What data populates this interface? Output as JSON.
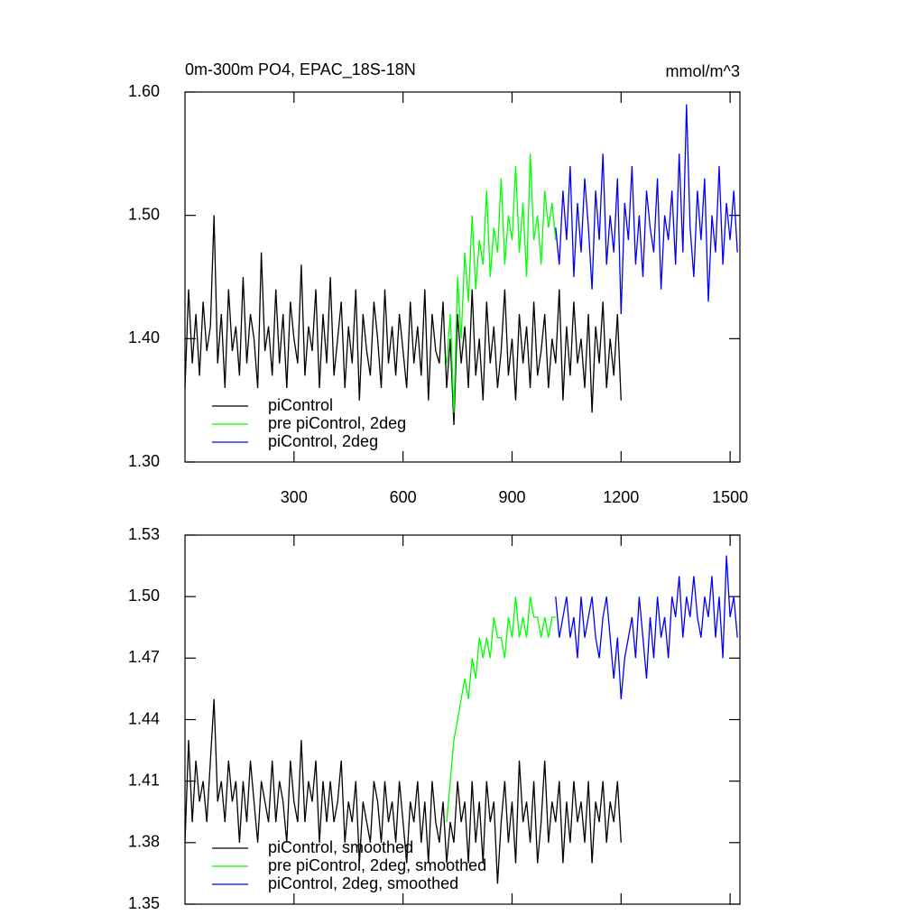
{
  "chart_data": [
    {
      "type": "line",
      "title": "0m-300m PO4, EPAC_18S-18N",
      "units": "mmol/m^3",
      "xlim": [
        0,
        1527
      ],
      "xticks": [
        300,
        600,
        900,
        1200,
        1500
      ],
      "xtick_labels": true,
      "ylim": [
        1.3,
        1.6
      ],
      "yticks": [
        {
          "value": 1.3,
          "label": "1.30"
        },
        {
          "value": 1.4,
          "label": "1.40"
        },
        {
          "value": 1.5,
          "label": "1.50"
        },
        {
          "value": 1.6,
          "label": "1.60"
        }
      ],
      "legend": "lower left",
      "series": [
        {
          "name": "piControl",
          "color": "#000000",
          "x": [
            0,
            10,
            20,
            30,
            40,
            50,
            60,
            70,
            80,
            90,
            100,
            110,
            120,
            130,
            140,
            150,
            160,
            170,
            180,
            190,
            200,
            210,
            220,
            230,
            240,
            250,
            260,
            270,
            280,
            290,
            300,
            310,
            320,
            330,
            340,
            350,
            360,
            370,
            380,
            390,
            400,
            410,
            420,
            430,
            440,
            450,
            460,
            470,
            480,
            490,
            500,
            510,
            520,
            530,
            540,
            550,
            560,
            570,
            580,
            590,
            600,
            610,
            620,
            630,
            640,
            650,
            660,
            670,
            680,
            690,
            700,
            710,
            720,
            730,
            740,
            750,
            760,
            770,
            780,
            790,
            800,
            810,
            820,
            830,
            840,
            850,
            860,
            870,
            880,
            890,
            900,
            910,
            920,
            930,
            940,
            950,
            960,
            970,
            980,
            990,
            1000,
            1010,
            1020,
            1030,
            1040,
            1050,
            1060,
            1070,
            1080,
            1090,
            1100,
            1110,
            1120,
            1130,
            1140,
            1150,
            1160,
            1170,
            1180,
            1190,
            1200
          ],
          "values": [
            1.36,
            1.44,
            1.38,
            1.42,
            1.37,
            1.43,
            1.39,
            1.41,
            1.5,
            1.38,
            1.42,
            1.36,
            1.44,
            1.39,
            1.41,
            1.37,
            1.45,
            1.38,
            1.42,
            1.4,
            1.36,
            1.47,
            1.39,
            1.41,
            1.37,
            1.44,
            1.38,
            1.42,
            1.36,
            1.43,
            1.4,
            1.38,
            1.46,
            1.37,
            1.41,
            1.39,
            1.44,
            1.36,
            1.42,
            1.38,
            1.45,
            1.37,
            1.4,
            1.43,
            1.36,
            1.41,
            1.38,
            1.44,
            1.35,
            1.42,
            1.39,
            1.37,
            1.43,
            1.4,
            1.36,
            1.44,
            1.38,
            1.41,
            1.37,
            1.42,
            1.39,
            1.36,
            1.43,
            1.38,
            1.41,
            1.37,
            1.44,
            1.35,
            1.42,
            1.39,
            1.38,
            1.43,
            1.36,
            1.4,
            1.33,
            1.42,
            1.38,
            1.41,
            1.36,
            1.44,
            1.37,
            1.4,
            1.35,
            1.43,
            1.38,
            1.41,
            1.36,
            1.39,
            1.44,
            1.37,
            1.4,
            1.35,
            1.42,
            1.38,
            1.41,
            1.36,
            1.43,
            1.37,
            1.39,
            1.42,
            1.36,
            1.4,
            1.38,
            1.44,
            1.35,
            1.41,
            1.37,
            1.43,
            1.38,
            1.4,
            1.36,
            1.42,
            1.34,
            1.41,
            1.38,
            1.43,
            1.36,
            1.4,
            1.37,
            1.42,
            1.35
          ]
        },
        {
          "name": "pre piControl, 2deg",
          "color": "#00ff00",
          "x": [
            720,
            730,
            740,
            750,
            760,
            770,
            780,
            790,
            800,
            810,
            820,
            830,
            840,
            850,
            860,
            870,
            880,
            890,
            900,
            910,
            920,
            930,
            940,
            950,
            960,
            970,
            980,
            990,
            1000,
            1010,
            1020
          ],
          "values": [
            1.38,
            1.42,
            1.34,
            1.45,
            1.4,
            1.47,
            1.43,
            1.5,
            1.44,
            1.48,
            1.46,
            1.52,
            1.45,
            1.49,
            1.47,
            1.53,
            1.46,
            1.5,
            1.48,
            1.54,
            1.47,
            1.51,
            1.45,
            1.55,
            1.48,
            1.5,
            1.46,
            1.52,
            1.49,
            1.51,
            1.48
          ]
        },
        {
          "name": "piControl, 2deg",
          "color": "#0000ff",
          "x": [
            1020,
            1030,
            1040,
            1050,
            1060,
            1070,
            1080,
            1090,
            1100,
            1110,
            1120,
            1130,
            1140,
            1150,
            1160,
            1170,
            1180,
            1190,
            1200,
            1210,
            1220,
            1230,
            1240,
            1250,
            1260,
            1270,
            1280,
            1290,
            1300,
            1310,
            1320,
            1330,
            1340,
            1350,
            1360,
            1370,
            1380,
            1390,
            1400,
            1410,
            1420,
            1430,
            1440,
            1450,
            1460,
            1470,
            1480,
            1490,
            1500,
            1510,
            1520
          ],
          "values": [
            1.49,
            1.46,
            1.52,
            1.48,
            1.54,
            1.45,
            1.51,
            1.47,
            1.53,
            1.49,
            1.44,
            1.52,
            1.48,
            1.55,
            1.46,
            1.5,
            1.47,
            1.53,
            1.42,
            1.51,
            1.48,
            1.54,
            1.46,
            1.5,
            1.45,
            1.52,
            1.49,
            1.47,
            1.53,
            1.44,
            1.5,
            1.48,
            1.52,
            1.46,
            1.55,
            1.47,
            1.59,
            1.49,
            1.45,
            1.52,
            1.48,
            1.53,
            1.43,
            1.5,
            1.47,
            1.54,
            1.46,
            1.51,
            1.48,
            1.52,
            1.47
          ]
        }
      ]
    },
    {
      "type": "line",
      "xlim": [
        0,
        1527
      ],
      "xticks": [
        300,
        600,
        900,
        1200,
        1500
      ],
      "xtick_labels": false,
      "ylim": [
        1.35,
        1.53
      ],
      "yticks": [
        1.35,
        1.38,
        1.41,
        1.44,
        1.47,
        {
          "value": 1.5,
          "label": "1.50"
        },
        1.53
      ],
      "legend": "lower left",
      "series": [
        {
          "name": "piControl, smoothed",
          "color": "#000000",
          "x": [
            0,
            10,
            20,
            30,
            40,
            50,
            60,
            70,
            80,
            90,
            100,
            110,
            120,
            130,
            140,
            150,
            160,
            170,
            180,
            190,
            200,
            210,
            220,
            230,
            240,
            250,
            260,
            270,
            280,
            290,
            300,
            310,
            320,
            330,
            340,
            350,
            360,
            370,
            380,
            390,
            400,
            410,
            420,
            430,
            440,
            450,
            460,
            470,
            480,
            490,
            500,
            510,
            520,
            530,
            540,
            550,
            560,
            570,
            580,
            590,
            600,
            610,
            620,
            630,
            640,
            650,
            660,
            670,
            680,
            690,
            700,
            710,
            720,
            730,
            740,
            750,
            760,
            770,
            780,
            790,
            800,
            810,
            820,
            830,
            840,
            850,
            860,
            870,
            880,
            890,
            900,
            910,
            920,
            930,
            940,
            950,
            960,
            970,
            980,
            990,
            1000,
            1010,
            1020,
            1030,
            1040,
            1050,
            1060,
            1070,
            1080,
            1090,
            1100,
            1110,
            1120,
            1130,
            1140,
            1150,
            1160,
            1170,
            1180,
            1190,
            1200
          ],
          "values": [
            1.38,
            1.43,
            1.39,
            1.42,
            1.4,
            1.41,
            1.39,
            1.42,
            1.45,
            1.4,
            1.41,
            1.39,
            1.42,
            1.4,
            1.41,
            1.38,
            1.41,
            1.39,
            1.42,
            1.4,
            1.38,
            1.41,
            1.4,
            1.39,
            1.42,
            1.39,
            1.41,
            1.4,
            1.38,
            1.42,
            1.4,
            1.39,
            1.43,
            1.39,
            1.41,
            1.4,
            1.42,
            1.38,
            1.41,
            1.39,
            1.41,
            1.39,
            1.4,
            1.42,
            1.38,
            1.4,
            1.39,
            1.41,
            1.37,
            1.4,
            1.39,
            1.38,
            1.41,
            1.4,
            1.38,
            1.41,
            1.39,
            1.4,
            1.38,
            1.41,
            1.39,
            1.37,
            1.4,
            1.39,
            1.41,
            1.38,
            1.4,
            1.37,
            1.41,
            1.39,
            1.38,
            1.4,
            1.37,
            1.39,
            1.38,
            1.41,
            1.39,
            1.4,
            1.37,
            1.41,
            1.38,
            1.4,
            1.37,
            1.41,
            1.39,
            1.4,
            1.36,
            1.39,
            1.41,
            1.38,
            1.4,
            1.37,
            1.42,
            1.39,
            1.4,
            1.38,
            1.41,
            1.37,
            1.39,
            1.42,
            1.38,
            1.4,
            1.39,
            1.41,
            1.37,
            1.4,
            1.38,
            1.41,
            1.39,
            1.4,
            1.38,
            1.41,
            1.37,
            1.4,
            1.39,
            1.41,
            1.38,
            1.4,
            1.39,
            1.41,
            1.38
          ]
        },
        {
          "name": "pre piControl, 2deg, smoothed",
          "color": "#00ff00",
          "x": [
            720,
            730,
            740,
            750,
            760,
            770,
            780,
            790,
            800,
            810,
            820,
            830,
            840,
            850,
            860,
            870,
            880,
            890,
            900,
            910,
            920,
            930,
            940,
            950,
            960,
            970,
            980,
            990,
            1000,
            1010,
            1020
          ],
          "values": [
            1.39,
            1.41,
            1.43,
            1.44,
            1.45,
            1.46,
            1.45,
            1.47,
            1.46,
            1.48,
            1.47,
            1.48,
            1.47,
            1.49,
            1.48,
            1.48,
            1.47,
            1.49,
            1.48,
            1.5,
            1.48,
            1.49,
            1.48,
            1.5,
            1.49,
            1.49,
            1.48,
            1.49,
            1.48,
            1.49,
            1.49
          ]
        },
        {
          "name": "piControl, 2deg, smoothed",
          "color": "#0000ff",
          "x": [
            1020,
            1030,
            1040,
            1050,
            1060,
            1070,
            1080,
            1090,
            1100,
            1110,
            1120,
            1130,
            1140,
            1150,
            1160,
            1170,
            1180,
            1190,
            1200,
            1210,
            1220,
            1230,
            1240,
            1250,
            1260,
            1270,
            1280,
            1290,
            1300,
            1310,
            1320,
            1330,
            1340,
            1350,
            1360,
            1370,
            1380,
            1390,
            1400,
            1410,
            1420,
            1430,
            1440,
            1450,
            1460,
            1470,
            1480,
            1490,
            1500,
            1510,
            1520
          ],
          "values": [
            1.5,
            1.48,
            1.49,
            1.5,
            1.48,
            1.49,
            1.47,
            1.5,
            1.48,
            1.49,
            1.5,
            1.48,
            1.47,
            1.49,
            1.5,
            1.48,
            1.46,
            1.48,
            1.45,
            1.47,
            1.48,
            1.49,
            1.47,
            1.5,
            1.48,
            1.46,
            1.49,
            1.47,
            1.5,
            1.48,
            1.49,
            1.47,
            1.5,
            1.49,
            1.51,
            1.48,
            1.5,
            1.49,
            1.51,
            1.49,
            1.48,
            1.5,
            1.49,
            1.51,
            1.48,
            1.5,
            1.47,
            1.52,
            1.49,
            1.5,
            1.48
          ]
        }
      ]
    }
  ]
}
